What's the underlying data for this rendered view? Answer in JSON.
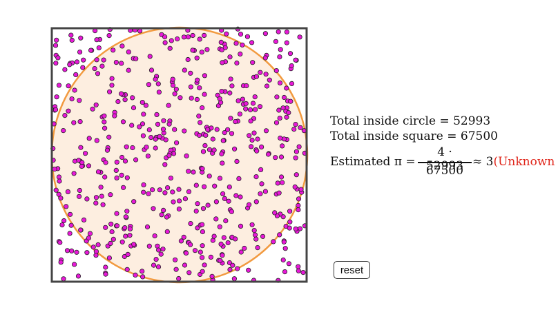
{
  "labels": {
    "inside_circle": "Total inside circle = 52993",
    "inside_square": "Total inside square = 67500",
    "estimated_prefix": "Estimated π =",
    "numerator": "4 · 52993",
    "denominator": "67500",
    "approx": "≈ 3",
    "unknown": "(Unknown"
  },
  "buttons": {
    "reset": "reset"
  },
  "colors": {
    "circle_fill": "#fdeee0",
    "circle_stroke": "#f29a3f",
    "square_stroke": "#444444",
    "dot_fill": "#e818d8",
    "dot_stroke": "#222222",
    "unknown_text": "#e0261b"
  },
  "point_count": 560
}
